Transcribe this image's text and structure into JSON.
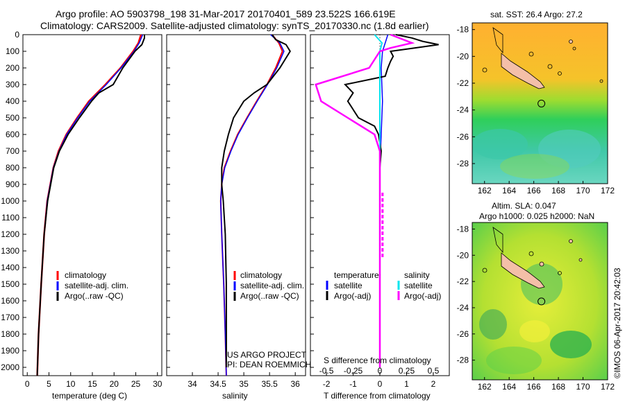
{
  "header": {
    "title_line1": "Argo profile: AO 5903798_198 31-Mar-2017 20170401_589 23.522S 166.619E",
    "title_line2": "Climatology: CARS2009. Satellite-adjusted climatology: synTS_20170330.nc (1.8d earlier)"
  },
  "colors": {
    "climatology": "#ff0000",
    "satellite": "#0000ff",
    "argo": "#000000",
    "sat_s": "#00e5ee",
    "argo_s": "#ff00ff",
    "land": "#f4bfa8"
  },
  "chart_data": [
    {
      "type": "line",
      "name": "temperature",
      "xlabel": "temperature (deg C)",
      "xlim": [
        -1,
        31
      ],
      "ylim": [
        2080,
        0
      ],
      "xticks": [
        0,
        5,
        10,
        15,
        20,
        25,
        30
      ],
      "yticks": [
        0,
        100,
        200,
        300,
        400,
        500,
        600,
        700,
        800,
        900,
        1000,
        1100,
        1200,
        1300,
        1400,
        1500,
        1600,
        1700,
        1800,
        1900,
        2000
      ],
      "legend": [
        "climatology",
        "satellite-adj. clim.",
        "Argo(..raw -QC)"
      ],
      "series": [
        {
          "name": "climatology",
          "depth": [
            0,
            50,
            100,
            200,
            300,
            400,
            500,
            600,
            700,
            800,
            1000,
            1200,
            1500,
            1800,
            2050
          ],
          "values": [
            26.2,
            25.6,
            24.4,
            21.5,
            18.0,
            14.2,
            11.5,
            9.0,
            7.2,
            6.0,
            4.6,
            3.9,
            3.2,
            2.6,
            2.3
          ]
        },
        {
          "name": "satellite-adj. clim.",
          "depth": [
            0,
            50,
            100,
            200,
            300,
            400,
            500,
            600,
            700,
            800,
            1000,
            1200,
            1500,
            1800,
            2050
          ],
          "values": [
            26.6,
            25.8,
            24.6,
            21.6,
            18.2,
            14.4,
            11.6,
            9.1,
            7.3,
            6.0,
            4.6,
            3.9,
            3.2,
            2.6,
            2.3
          ]
        },
        {
          "name": "Argo(..raw -QC)",
          "depth": [
            0,
            20,
            60,
            100,
            200,
            300,
            350,
            400,
            500,
            600,
            700,
            800,
            1000,
            1200,
            1500,
            1800,
            2050
          ],
          "values": [
            27.0,
            27.0,
            26.4,
            24.8,
            22.0,
            19.8,
            16.5,
            14.8,
            12.0,
            9.4,
            7.4,
            6.1,
            4.7,
            3.9,
            3.2,
            2.6,
            2.3
          ]
        }
      ]
    },
    {
      "type": "line",
      "name": "salinity",
      "xlabel": "salinity",
      "xlim": [
        33.5,
        36.2
      ],
      "ylim": [
        2080,
        0
      ],
      "xticks": [
        34,
        34.5,
        35,
        35.5,
        36
      ],
      "legend": [
        "climatology",
        "satellite-adj. clim.",
        "Argo(..raw -QC)"
      ],
      "annotation": [
        "US ARGO PROJECT",
        "PI: DEAN ROEMMICH"
      ],
      "series": [
        {
          "name": "climatology",
          "depth": [
            0,
            50,
            100,
            200,
            300,
            400,
            500,
            600,
            700,
            800,
            900,
            1000,
            1200,
            1500,
            1800,
            2050
          ],
          "values": [
            35.55,
            35.68,
            35.75,
            35.62,
            35.45,
            35.25,
            35.06,
            34.88,
            34.74,
            34.62,
            34.57,
            34.55,
            34.57,
            34.61,
            34.64,
            34.66
          ]
        },
        {
          "name": "satellite-adj. clim.",
          "depth": [
            0,
            50,
            100,
            200,
            300,
            400,
            500,
            600,
            700,
            800,
            900,
            1000,
            1200,
            1500,
            1800,
            2050
          ],
          "values": [
            35.52,
            35.7,
            35.78,
            35.64,
            35.46,
            35.26,
            35.07,
            34.89,
            34.75,
            34.63,
            34.57,
            34.55,
            34.57,
            34.61,
            34.64,
            34.66
          ]
        },
        {
          "name": "Argo(..raw -QC)",
          "depth": [
            0,
            30,
            60,
            100,
            150,
            200,
            300,
            350,
            400,
            500,
            600,
            700,
            800,
            900,
            1000,
            1200,
            1500,
            1800,
            2000
          ],
          "values": [
            35.55,
            35.62,
            35.82,
            35.9,
            35.8,
            35.7,
            35.45,
            35.2,
            35.0,
            34.8,
            34.7,
            34.62,
            34.57,
            34.57,
            34.6,
            34.64,
            34.66,
            34.66,
            34.66
          ]
        }
      ]
    },
    {
      "type": "line",
      "name": "difference",
      "xlabel": "T difference from climatology",
      "xlabel_top": "S difference from climatology",
      "xlim": [
        -2.6,
        2.6
      ],
      "ylim": [
        2080,
        0
      ],
      "xticks_T": [
        -2,
        -1,
        0,
        1,
        2
      ],
      "xticks_S": [
        -0.5,
        -0.25,
        0,
        0.25,
        0.5
      ],
      "legend_headers": [
        "temperature",
        "salinity"
      ],
      "legend": [
        "satellite",
        "Argo(-adj)",
        "satellite",
        "Argo(-adj)"
      ],
      "series": [
        {
          "name": "T satellite",
          "depth": [
            0,
            50,
            100,
            200,
            400,
            600,
            800,
            1000,
            1400,
            2000
          ],
          "values": [
            0.3,
            0.2,
            0.1,
            0.05,
            0.1,
            0.05,
            0.0,
            0.0,
            0.0,
            0.0
          ]
        },
        {
          "name": "T Argo(-adj)",
          "depth": [
            0,
            20,
            40,
            60,
            80,
            100,
            130,
            160,
            200,
            250,
            300,
            350,
            400,
            450,
            500,
            550,
            600,
            700,
            800,
            900,
            1000,
            1200,
            1400,
            2000
          ],
          "values": [
            0.6,
            1.2,
            1.6,
            2.2,
            1.3,
            0.4,
            0.5,
            0.4,
            0.3,
            0.2,
            -1.3,
            -1.0,
            -1.2,
            -1.0,
            -0.8,
            -0.2,
            -0.05,
            0.05,
            0.0,
            0.0,
            0.0,
            0.0,
            0.0,
            0.0
          ]
        },
        {
          "name": "S satellite",
          "depth": [
            0,
            50,
            100,
            200,
            400,
            600,
            800,
            1000,
            1400,
            2000
          ],
          "values": [
            -0.05,
            0.02,
            0.0,
            0.0,
            0.0,
            0.0,
            0.0,
            0.0,
            0.0,
            0.0
          ]
        },
        {
          "name": "S Argo(-adj)",
          "depth": [
            0,
            50,
            80,
            100,
            200,
            300,
            400,
            500,
            600,
            700,
            800,
            900,
            1000,
            1500,
            2000
          ],
          "values": [
            0.1,
            0.3,
            0.1,
            0.0,
            -0.1,
            -0.6,
            -0.55,
            -0.3,
            -0.05,
            0.0,
            0.0,
            0.0,
            0.0,
            0.0,
            0.0
          ]
        }
      ]
    },
    {
      "type": "heatmap",
      "name": "sat. SST map",
      "title": "sat. SST: 26.4 Argo: 27.2",
      "xlim": [
        161,
        172
      ],
      "ylim": [
        -29.5,
        -17.5
      ],
      "xticks": [
        162,
        164,
        166,
        168,
        170,
        172
      ],
      "yticks": [
        -18,
        -20,
        -22,
        -24,
        -26,
        -28
      ],
      "argo_point": [
        166.619,
        -23.522
      ]
    },
    {
      "type": "heatmap",
      "name": "altimetry map",
      "title_line1": "Altim. SLA: 0.047",
      "title_line2": "Argo h1000: 0.025 h2000: NaN",
      "xlim": [
        161,
        172
      ],
      "ylim": [
        -29.5,
        -17.5
      ],
      "xticks": [
        162,
        164,
        166,
        168,
        170,
        172
      ],
      "yticks": [
        -18,
        -20,
        -22,
        -24,
        -26,
        -28
      ],
      "argo_point": [
        166.619,
        -23.522
      ]
    }
  ],
  "credit": "©IMOS 06-Apr-2017 20:42:03"
}
